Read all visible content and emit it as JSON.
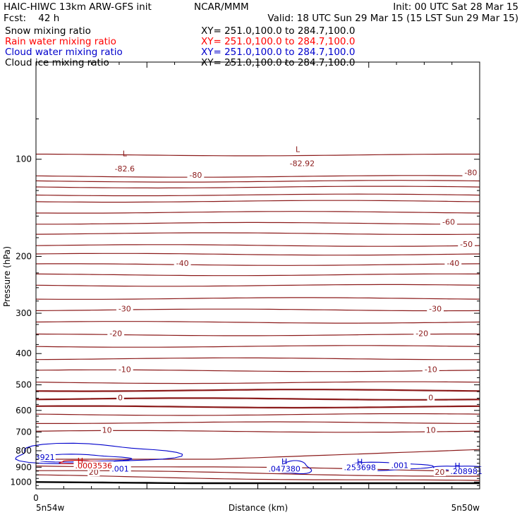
{
  "header": {
    "line1_left": "HAIC-HIWC 13km ARW-GFS init",
    "line1_mid": "NCAR/MMM",
    "line1_right": "Init: 00 UTC Sat 28 Mar 15",
    "line2_left": "Fcst:    42 h",
    "line2_right": "Valid: 18 UTC Sun 29 Mar 15 (15 LST Sun 29 Mar 15)",
    "fields": [
      {
        "name": "Snow mixing ratio",
        "xy": "XY= 251.0,100.0 to 284.7,100.0",
        "color": "#000000"
      },
      {
        "name": "Rain water mixing ratio",
        "xy": "XY= 251.0,100.0 to 284.7,100.0",
        "color": "#ff0000"
      },
      {
        "name": "Cloud water mixing ratio",
        "xy": "XY= 251.0,100.0 to 284.7,100.0",
        "color": "#0000cc"
      },
      {
        "name": "Cloud ice mixing ratio",
        "xy": "XY= 251.0,100.0 to 284.7,100.0",
        "color": "#000000"
      }
    ]
  },
  "chart_data": {
    "type": "line",
    "xlabel": "Distance (km)",
    "ylabel": "Pressure (hPa)",
    "x_ticks": [
      "0"
    ],
    "x_endpoints": [
      "5n54w",
      "5n50w"
    ],
    "y_ticks": [
      100,
      200,
      300,
      400,
      500,
      600,
      700,
      800,
      900,
      1000
    ],
    "ylim": [
      1050,
      50
    ],
    "y_scale": "log",
    "colors": {
      "temperature": "#8b1a1a",
      "cloud_water": "#0000cc",
      "rain_water": "#cc0000",
      "ground": "#000000"
    },
    "temperature_contours": [
      {
        "level": -80,
        "p": [
          97,
          113,
          117,
          122,
          129,
          135
        ]
      },
      {
        "level": -60,
        "p": [
          146,
          158
        ]
      },
      {
        "level": -50,
        "p": [
          170,
          185
        ]
      },
      {
        "level": -40,
        "p": [
          197,
          212
        ]
      },
      {
        "level": -30,
        "p": [
          228,
          246,
          270,
          293
        ]
      },
      {
        "level": -20,
        "p": [
          320,
          350
        ]
      },
      {
        "level": -10,
        "p": [
          380,
          415,
          452,
          492
        ]
      },
      {
        "level": 0,
        "p": [
          520,
          553,
          585
        ]
      },
      {
        "level": 10,
        "p": [
          618,
          655,
          697
        ]
      },
      {
        "level": 20,
        "p": [
          905,
          940,
          975
        ]
      }
    ],
    "temperature_labels": [
      {
        "text": "-82.6",
        "x": 0.2,
        "p": 108
      },
      {
        "text": "-82.92",
        "x": 0.6,
        "p": 104
      },
      {
        "text": "-80",
        "x": 0.36,
        "p": 113
      },
      {
        "text": "-80",
        "x": 0.98,
        "p": 111
      },
      {
        "text": "-60",
        "x": 0.93,
        "p": 158
      },
      {
        "text": "-50",
        "x": 0.97,
        "p": 185
      },
      {
        "text": "-40",
        "x": 0.33,
        "p": 212
      },
      {
        "text": "-40",
        "x": 0.94,
        "p": 212
      },
      {
        "text": "-30",
        "x": 0.2,
        "p": 293
      },
      {
        "text": "-30",
        "x": 0.9,
        "p": 293
      },
      {
        "text": "-20",
        "x": 0.18,
        "p": 350
      },
      {
        "text": "-20",
        "x": 0.87,
        "p": 350
      },
      {
        "text": "-10",
        "x": 0.2,
        "p": 452
      },
      {
        "text": "-10",
        "x": 0.89,
        "p": 452
      },
      {
        "text": "0",
        "x": 0.19,
        "p": 553
      },
      {
        "text": "0",
        "x": 0.89,
        "p": 553
      },
      {
        "text": "10",
        "x": 0.16,
        "p": 697
      },
      {
        "text": "10",
        "x": 0.89,
        "p": 697
      },
      {
        "text": "20",
        "x": 0.13,
        "p": 940
      },
      {
        "text": "20",
        "x": 0.91,
        "p": 940
      }
    ],
    "highs_lows": [
      {
        "symbol": "L",
        "x": 0.2,
        "p": 98
      },
      {
        "symbol": "L",
        "x": 0.59,
        "p": 95
      }
    ],
    "cloud_water_labels": [
      {
        "text": "3921",
        "x": 0.02,
        "p": 845
      },
      {
        "text": ".001",
        "x": 0.19,
        "p": 920
      },
      {
        "text": ".047380",
        "x": 0.56,
        "p": 918
      },
      {
        "text": ".253698",
        "x": 0.73,
        "p": 910
      },
      {
        "text": ".001",
        "x": 0.82,
        "p": 897
      },
      {
        "text": ".208981",
        "x": 0.97,
        "p": 935
      }
    ],
    "cloud_water_highs": [
      {
        "symbol": "H",
        "x": 0.56,
        "p": 880
      },
      {
        "symbol": "H",
        "x": 0.73,
        "p": 882
      },
      {
        "symbol": "H",
        "x": 0.95,
        "p": 907
      }
    ],
    "rain_water_labels": [
      {
        "text": ".0003536",
        "x": 0.13,
        "p": 898
      }
    ],
    "rain_water_highs": [
      {
        "symbol": "H",
        "x": 0.1,
        "p": 875
      }
    ]
  }
}
